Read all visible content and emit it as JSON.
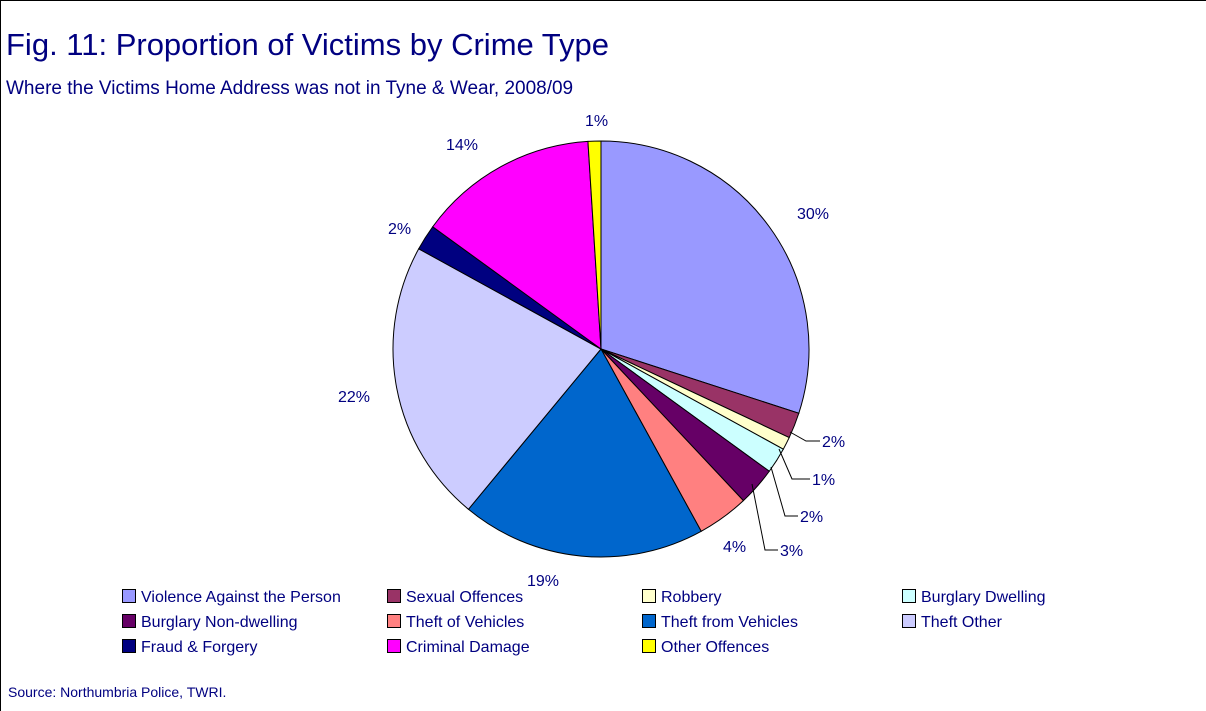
{
  "title": "Fig. 11: Proportion of Victims by Crime Type",
  "subtitle": "Where the Victims Home Address was not in Tyne & Wear, 2008/09",
  "source": "Source: Northumbria Police, TWRI.",
  "chart_data": {
    "type": "pie",
    "title": "Fig. 11: Proportion of Victims by Crime Type",
    "subtitle": "Where the Victims Home Address was not in Tyne & Wear, 2008/09",
    "legend_position": "bottom",
    "start_angle": "12 o'clock, clockwise",
    "slices": [
      {
        "name": "Violence Against the Person",
        "value": 30,
        "label": "30%",
        "color": "#9999FF"
      },
      {
        "name": "Sexual Offences",
        "value": 2,
        "label": "2%",
        "color": "#993366"
      },
      {
        "name": "Robbery",
        "value": 1,
        "label": "1%",
        "color": "#FFFFCC"
      },
      {
        "name": "Burglary Dwelling",
        "value": 2,
        "label": "2%",
        "color": "#CCFFFF"
      },
      {
        "name": "Burglary Non-dwelling",
        "value": 3,
        "label": "3%",
        "color": "#660066"
      },
      {
        "name": "Theft of Vehicles",
        "value": 4,
        "label": "4%",
        "color": "#FF8080"
      },
      {
        "name": "Theft from Vehicles",
        "value": 19,
        "label": "19%",
        "color": "#0066CC"
      },
      {
        "name": "Theft Other",
        "value": 22,
        "label": "22%",
        "color": "#CCCCFF"
      },
      {
        "name": "Fraud & Forgery",
        "value": 2,
        "label": "2%",
        "color": "#000080"
      },
      {
        "name": "Criminal Damage",
        "value": 14,
        "label": "14%",
        "color": "#FF00FF"
      },
      {
        "name": "Other Offences",
        "value": 1,
        "label": "1%",
        "color": "#FFFF00"
      }
    ]
  }
}
